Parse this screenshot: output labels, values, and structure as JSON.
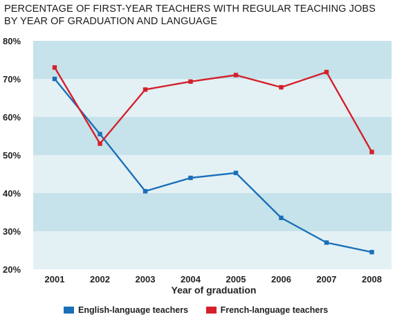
{
  "chart_data": {
    "type": "line",
    "title_lines": [
      "PERCENTAGE OF FIRST-YEAR TEACHERS WITH REGULAR TEACHING JOBS",
      "BY YEAR OF GRADUATION AND LANGUAGE"
    ],
    "xlabel": "Year of graduation",
    "ylabel": "",
    "categories": [
      "2001",
      "2002",
      "2003",
      "2004",
      "2005",
      "2006",
      "2007",
      "2008"
    ],
    "y_ticks": [
      "20%",
      "30%",
      "40%",
      "50%",
      "60%",
      "70%",
      "80%"
    ],
    "ylim": [
      20,
      80
    ],
    "grid": "alternating horizontal bands",
    "legend_position": "bottom",
    "band_colors": [
      "#c6e2ea",
      "#e3f1f5"
    ],
    "series": [
      {
        "name": "English-language teachers",
        "color": "#1a6fb8",
        "values": [
          70,
          55.5,
          40.5,
          44,
          45.3,
          33.5,
          27,
          24.5
        ]
      },
      {
        "name": "French-language teachers",
        "color": "#d4202a",
        "values": [
          73,
          53,
          67.2,
          69.3,
          71,
          67.8,
          71.8,
          50.8
        ]
      }
    ]
  }
}
